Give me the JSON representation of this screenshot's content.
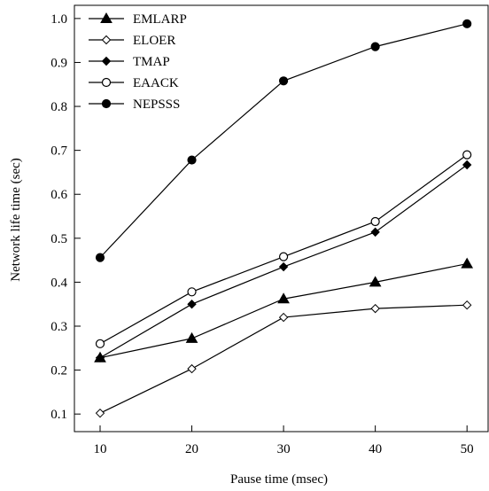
{
  "chart_data": {
    "type": "line",
    "title": "",
    "xlabel": "Pause time (msec)",
    "ylabel": "Network life time (sec)",
    "x": [
      10,
      20,
      30,
      40,
      50
    ],
    "xticks": [
      10,
      20,
      30,
      40,
      50
    ],
    "yticks": [
      "0.1",
      "0.2",
      "0.3",
      "0.4",
      "0.5",
      "0.6",
      "0.7",
      "0.8",
      "0.9",
      "1.0"
    ],
    "xlim": [
      7.2,
      52.3
    ],
    "ylim": [
      0.06,
      1.03
    ],
    "grid": false,
    "legend_position": "top-left",
    "series": [
      {
        "name": "EMLARP",
        "marker": "filled-triangle",
        "values": [
          0.228,
          0.272,
          0.362,
          0.4,
          0.442
        ]
      },
      {
        "name": "ELOER",
        "marker": "open-diamond",
        "values": [
          0.102,
          0.203,
          0.32,
          0.34,
          0.348
        ]
      },
      {
        "name": "TMAP",
        "marker": "filled-diamond",
        "values": [
          0.228,
          0.35,
          0.435,
          0.514,
          0.667
        ]
      },
      {
        "name": "EAACK",
        "marker": "open-circle",
        "values": [
          0.26,
          0.378,
          0.458,
          0.538,
          0.69
        ]
      },
      {
        "name": "NEPSSS",
        "marker": "filled-circle",
        "values": [
          0.456,
          0.678,
          0.858,
          0.936,
          0.988
        ]
      }
    ]
  }
}
